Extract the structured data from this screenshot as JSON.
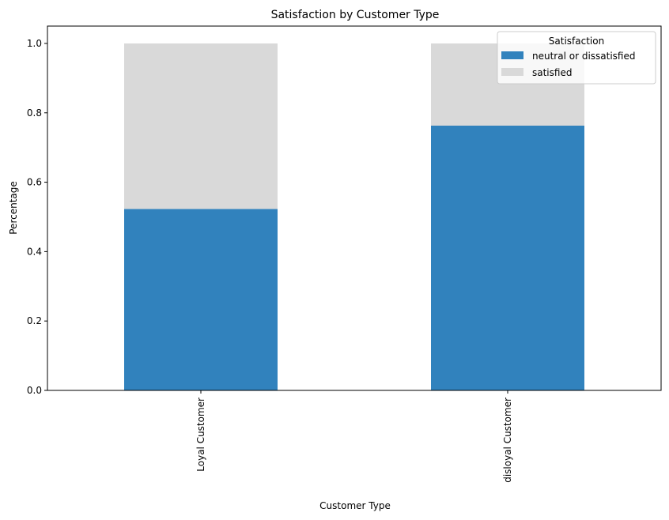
{
  "chart_data": {
    "type": "bar",
    "stacked": true,
    "title": "Satisfaction by Customer Type",
    "xlabel": "Customer Type",
    "ylabel": "Percentage",
    "categories": [
      "Loyal Customer",
      "disloyal Customer"
    ],
    "series": [
      {
        "name": "neutral or dissatisfied",
        "color": "#3182bd",
        "values": [
          0.523,
          0.763
        ]
      },
      {
        "name": "satisfied",
        "color": "#d9d9d9",
        "values": [
          0.477,
          0.237
        ]
      }
    ],
    "ylim": [
      0,
      1.05
    ],
    "yticks": [
      "0.0",
      "0.2",
      "0.4",
      "0.6",
      "0.8",
      "1.0"
    ],
    "legend": {
      "title": "Satisfaction",
      "placement": "top-right"
    },
    "grid": false
  }
}
